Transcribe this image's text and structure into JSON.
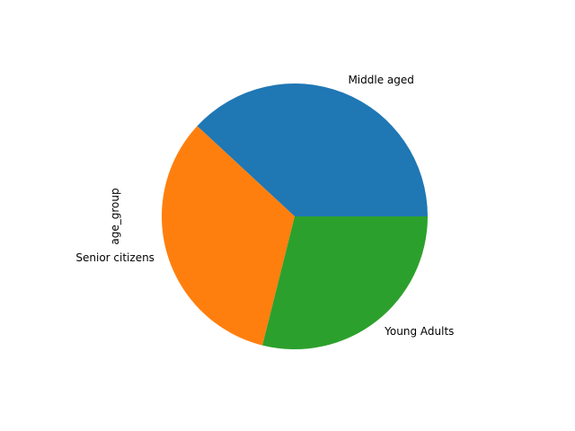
{
  "chart_data": {
    "type": "pie",
    "ylabel": "age_group",
    "slices": [
      {
        "label": "Middle aged",
        "value": 38.1,
        "color": "#1f77b4"
      },
      {
        "label": "Senior citizens",
        "value": 33.0,
        "color": "#ff7f0e"
      },
      {
        "label": "Young Adults",
        "value": 28.9,
        "color": "#2ca02c"
      }
    ],
    "start_angle_deg": 0,
    "direction": "counterclockwise",
    "legend": "none"
  }
}
